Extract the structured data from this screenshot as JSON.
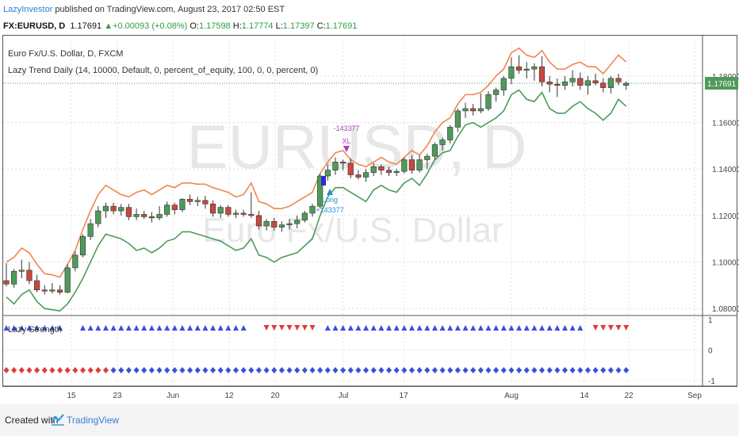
{
  "header": {
    "author": "LazyInvestor",
    "published": " published on TradingView.com, August 23, 2017 02:50 EST"
  },
  "symbol_bar": {
    "symbol": "FX:EURUSD, D",
    "last": "1.17691",
    "change": "+0.00093 (+0.08%)",
    "open_label": "O:",
    "open": "1.17598",
    "high_label": "H:",
    "high": "1.17774",
    "low_label": "L:",
    "low": "1.17397",
    "close_label": "C:",
    "close": "1.17691"
  },
  "legend": {
    "series": "Euro Fx/U.S. Dollar, D, FXCM",
    "strategy": "Lazy Trend Daily (14, 10000, Default, 0, percent_of_equity, 100, 0, 0, percent, 0)",
    "subpane": "Lazy Strength"
  },
  "watermark": {
    "line1": "EURUSD, D",
    "line2": "Euro Fx/U.S. Dollar"
  },
  "footer": {
    "created": "Created with",
    "brand": "TradingView"
  },
  "colors": {
    "up": "#4e9a5a",
    "down": "#c9473c",
    "upper_band": "#f0854d",
    "lower_band": "#4e9a5a",
    "tri_up": "#3b4fd8",
    "tri_down": "#e23a3a",
    "dia_red": "#e23a3a",
    "dia_blue": "#3b4fd8",
    "price_tag": "#4e9a5a",
    "trade_short": "#b040c0",
    "trade_long": "#1e8fd8"
  },
  "chart_data": {
    "type": "candlestick",
    "y_axis_ticks": [
      "1.18000",
      "1.16000",
      "1.14000",
      "1.12000",
      "1.10000",
      "1.08000"
    ],
    "last_price": "1.17691",
    "x_axis_labels": [
      "15",
      "23",
      "Jun",
      "12",
      "20",
      "Jul",
      "17",
      "Aug",
      "14",
      "22",
      "Sep"
    ],
    "lower_axis_ticks": [
      "1",
      "0",
      "-1"
    ],
    "trades": [
      {
        "label1": "-143377",
        "label2": "XL"
      },
      {
        "label1": "Long",
        "label2": "+143377"
      }
    ],
    "candles": [
      {
        "o": 1.092,
        "h": 1.0995,
        "l": 1.0895,
        "c": 1.0905
      },
      {
        "o": 1.0905,
        "h": 1.097,
        "l": 1.089,
        "c": 1.096
      },
      {
        "o": 1.096,
        "h": 1.101,
        "l": 1.093,
        "c": 1.0965
      },
      {
        "o": 1.0965,
        "h": 1.1,
        "l": 1.0905,
        "c": 1.092
      },
      {
        "o": 1.092,
        "h": 1.0945,
        "l": 1.087,
        "c": 1.088
      },
      {
        "o": 1.088,
        "h": 1.09,
        "l": 1.086,
        "c": 1.0875
      },
      {
        "o": 1.0875,
        "h": 1.091,
        "l": 1.0865,
        "c": 1.088
      },
      {
        "o": 1.088,
        "h": 1.09,
        "l": 1.086,
        "c": 1.087
      },
      {
        "o": 1.087,
        "h": 1.099,
        "l": 1.0865,
        "c": 1.0975
      },
      {
        "o": 1.0975,
        "h": 1.1045,
        "l": 1.096,
        "c": 1.103
      },
      {
        "o": 1.103,
        "h": 1.112,
        "l": 1.102,
        "c": 1.111
      },
      {
        "o": 1.111,
        "h": 1.1185,
        "l": 1.1095,
        "c": 1.1165
      },
      {
        "o": 1.1165,
        "h": 1.124,
        "l": 1.115,
        "c": 1.122
      },
      {
        "o": 1.122,
        "h": 1.1255,
        "l": 1.119,
        "c": 1.124
      },
      {
        "o": 1.124,
        "h": 1.1255,
        "l": 1.1205,
        "c": 1.122
      },
      {
        "o": 1.122,
        "h": 1.125,
        "l": 1.12,
        "c": 1.1235
      },
      {
        "o": 1.1235,
        "h": 1.125,
        "l": 1.118,
        "c": 1.1195
      },
      {
        "o": 1.1195,
        "h": 1.123,
        "l": 1.118,
        "c": 1.1205
      },
      {
        "o": 1.1205,
        "h": 1.122,
        "l": 1.1185,
        "c": 1.1195
      },
      {
        "o": 1.1195,
        "h": 1.1215,
        "l": 1.117,
        "c": 1.119
      },
      {
        "o": 1.119,
        "h": 1.124,
        "l": 1.118,
        "c": 1.1205
      },
      {
        "o": 1.1205,
        "h": 1.126,
        "l": 1.1195,
        "c": 1.1245
      },
      {
        "o": 1.1245,
        "h": 1.1255,
        "l": 1.1205,
        "c": 1.1225
      },
      {
        "o": 1.1225,
        "h": 1.1275,
        "l": 1.1215,
        "c": 1.127
      },
      {
        "o": 1.127,
        "h": 1.129,
        "l": 1.1245,
        "c": 1.126
      },
      {
        "o": 1.126,
        "h": 1.128,
        "l": 1.124,
        "c": 1.1265
      },
      {
        "o": 1.1265,
        "h": 1.1285,
        "l": 1.123,
        "c": 1.125
      },
      {
        "o": 1.125,
        "h": 1.1265,
        "l": 1.1195,
        "c": 1.121
      },
      {
        "o": 1.121,
        "h": 1.1245,
        "l": 1.119,
        "c": 1.1235
      },
      {
        "o": 1.1235,
        "h": 1.1245,
        "l": 1.1195,
        "c": 1.1205
      },
      {
        "o": 1.1205,
        "h": 1.1225,
        "l": 1.119,
        "c": 1.121
      },
      {
        "o": 1.121,
        "h": 1.1225,
        "l": 1.1195,
        "c": 1.1205
      },
      {
        "o": 1.1205,
        "h": 1.13,
        "l": 1.119,
        "c": 1.12
      },
      {
        "o": 1.12,
        "h": 1.122,
        "l": 1.114,
        "c": 1.1155
      },
      {
        "o": 1.1155,
        "h": 1.1185,
        "l": 1.1135,
        "c": 1.1175
      },
      {
        "o": 1.1175,
        "h": 1.119,
        "l": 1.1135,
        "c": 1.115
      },
      {
        "o": 1.115,
        "h": 1.1175,
        "l": 1.113,
        "c": 1.116
      },
      {
        "o": 1.116,
        "h": 1.1185,
        "l": 1.114,
        "c": 1.1165
      },
      {
        "o": 1.1165,
        "h": 1.12,
        "l": 1.1145,
        "c": 1.118
      },
      {
        "o": 1.118,
        "h": 1.122,
        "l": 1.117,
        "c": 1.121
      },
      {
        "o": 1.121,
        "h": 1.125,
        "l": 1.1195,
        "c": 1.124
      },
      {
        "o": 1.124,
        "h": 1.138,
        "l": 1.123,
        "c": 1.137
      },
      {
        "o": 1.137,
        "h": 1.142,
        "l": 1.135,
        "c": 1.1395
      },
      {
        "o": 1.1395,
        "h": 1.145,
        "l": 1.1375,
        "c": 1.143
      },
      {
        "o": 1.143,
        "h": 1.144,
        "l": 1.1395,
        "c": 1.1425
      },
      {
        "o": 1.1425,
        "h": 1.1445,
        "l": 1.136,
        "c": 1.1375
      },
      {
        "o": 1.1375,
        "h": 1.1395,
        "l": 1.1355,
        "c": 1.1365
      },
      {
        "o": 1.1365,
        "h": 1.14,
        "l": 1.1345,
        "c": 1.1385
      },
      {
        "o": 1.1385,
        "h": 1.1425,
        "l": 1.137,
        "c": 1.141
      },
      {
        "o": 1.141,
        "h": 1.142,
        "l": 1.1375,
        "c": 1.1395
      },
      {
        "o": 1.1395,
        "h": 1.141,
        "l": 1.137,
        "c": 1.1385
      },
      {
        "o": 1.1385,
        "h": 1.14,
        "l": 1.137,
        "c": 1.139
      },
      {
        "o": 1.139,
        "h": 1.145,
        "l": 1.138,
        "c": 1.144
      },
      {
        "o": 1.144,
        "h": 1.146,
        "l": 1.138,
        "c": 1.1395
      },
      {
        "o": 1.1395,
        "h": 1.146,
        "l": 1.1385,
        "c": 1.144
      },
      {
        "o": 1.144,
        "h": 1.1465,
        "l": 1.14,
        "c": 1.1455
      },
      {
        "o": 1.1455,
        "h": 1.1515,
        "l": 1.144,
        "c": 1.1505
      },
      {
        "o": 1.1505,
        "h": 1.1535,
        "l": 1.148,
        "c": 1.1525
      },
      {
        "o": 1.1525,
        "h": 1.159,
        "l": 1.151,
        "c": 1.158
      },
      {
        "o": 1.158,
        "h": 1.166,
        "l": 1.156,
        "c": 1.165
      },
      {
        "o": 1.165,
        "h": 1.1685,
        "l": 1.162,
        "c": 1.166
      },
      {
        "o": 1.166,
        "h": 1.168,
        "l": 1.163,
        "c": 1.165
      },
      {
        "o": 1.165,
        "h": 1.1725,
        "l": 1.164,
        "c": 1.166
      },
      {
        "o": 1.166,
        "h": 1.1735,
        "l": 1.165,
        "c": 1.172
      },
      {
        "o": 1.172,
        "h": 1.175,
        "l": 1.169,
        "c": 1.174
      },
      {
        "o": 1.174,
        "h": 1.18,
        "l": 1.1715,
        "c": 1.179
      },
      {
        "o": 1.179,
        "h": 1.188,
        "l": 1.1765,
        "c": 1.184
      },
      {
        "o": 1.184,
        "h": 1.189,
        "l": 1.181,
        "c": 1.1825
      },
      {
        "o": 1.1825,
        "h": 1.186,
        "l": 1.179,
        "c": 1.183
      },
      {
        "o": 1.183,
        "h": 1.1855,
        "l": 1.178,
        "c": 1.184
      },
      {
        "o": 1.184,
        "h": 1.1885,
        "l": 1.1755,
        "c": 1.1775
      },
      {
        "o": 1.1775,
        "h": 1.18,
        "l": 1.173,
        "c": 1.1765
      },
      {
        "o": 1.1765,
        "h": 1.179,
        "l": 1.171,
        "c": 1.176
      },
      {
        "o": 1.176,
        "h": 1.18,
        "l": 1.174,
        "c": 1.1775
      },
      {
        "o": 1.1775,
        "h": 1.1825,
        "l": 1.1755,
        "c": 1.179
      },
      {
        "o": 1.179,
        "h": 1.1815,
        "l": 1.174,
        "c": 1.176
      },
      {
        "o": 1.176,
        "h": 1.18,
        "l": 1.172,
        "c": 1.178
      },
      {
        "o": 1.178,
        "h": 1.181,
        "l": 1.176,
        "c": 1.177
      },
      {
        "o": 1.177,
        "h": 1.179,
        "l": 1.173,
        "c": 1.175
      },
      {
        "o": 1.175,
        "h": 1.18,
        "l": 1.1725,
        "c": 1.179
      },
      {
        "o": 1.179,
        "h": 1.181,
        "l": 1.176,
        "c": 1.1775
      },
      {
        "o": 1.176,
        "h": 1.1777,
        "l": 1.174,
        "c": 1.1769
      }
    ],
    "upper_band": [
      1.1,
      1.102,
      1.106,
      1.104,
      1.099,
      1.095,
      1.0945,
      1.0935,
      1.099,
      1.105,
      1.114,
      1.122,
      1.129,
      1.133,
      1.131,
      1.129,
      1.128,
      1.13,
      1.131,
      1.129,
      1.131,
      1.133,
      1.132,
      1.134,
      1.134,
      1.1335,
      1.1335,
      1.132,
      1.131,
      1.13,
      1.128,
      1.129,
      1.134,
      1.126,
      1.125,
      1.123,
      1.123,
      1.124,
      1.126,
      1.128,
      1.13,
      1.138,
      1.143,
      1.147,
      1.148,
      1.144,
      1.142,
      1.141,
      1.143,
      1.145,
      1.143,
      1.142,
      1.145,
      1.148,
      1.146,
      1.15,
      1.156,
      1.16,
      1.162,
      1.168,
      1.172,
      1.172,
      1.173,
      1.176,
      1.18,
      1.183,
      1.19,
      1.192,
      1.189,
      1.188,
      1.191,
      1.186,
      1.183,
      1.183,
      1.185,
      1.186,
      1.184,
      1.184,
      1.181,
      1.185,
      1.189,
      1.186
    ],
    "lower_band": [
      1.085,
      1.082,
      1.086,
      1.088,
      1.083,
      1.08,
      1.0795,
      1.079,
      1.082,
      1.087,
      1.093,
      1.1,
      1.107,
      1.112,
      1.111,
      1.11,
      1.108,
      1.105,
      1.106,
      1.104,
      1.106,
      1.109,
      1.11,
      1.113,
      1.113,
      1.112,
      1.111,
      1.11,
      1.109,
      1.107,
      1.105,
      1.106,
      1.11,
      1.103,
      1.102,
      1.1,
      1.102,
      1.103,
      1.104,
      1.107,
      1.11,
      1.12,
      1.128,
      1.132,
      1.132,
      1.13,
      1.128,
      1.126,
      1.131,
      1.133,
      1.131,
      1.13,
      1.134,
      1.136,
      1.133,
      1.138,
      1.144,
      1.147,
      1.148,
      1.154,
      1.159,
      1.16,
      1.158,
      1.16,
      1.162,
      1.165,
      1.172,
      1.174,
      1.17,
      1.169,
      1.173,
      1.166,
      1.164,
      1.164,
      1.167,
      1.169,
      1.166,
      1.164,
      1.161,
      1.164,
      1.17,
      1.167
    ],
    "lazy_strength": {
      "triangles": [
        "",
        "",
        "",
        "",
        "",
        "",
        "",
        "",
        "",
        "",
        "",
        "",
        "",
        "",
        "",
        "",
        "",
        "",
        "",
        "",
        "",
        "",
        "",
        "",
        "",
        "",
        "",
        "",
        "",
        "",
        "",
        "",
        "",
        "",
        "",
        "",
        "",
        "",
        "",
        "",
        "",
        "",
        "",
        "",
        "",
        "",
        "",
        "",
        "",
        "",
        "",
        "",
        "",
        "",
        "",
        "",
        "",
        "",
        "",
        "",
        "",
        "",
        "",
        "",
        "",
        "",
        "",
        "",
        "",
        "",
        "",
        "",
        "",
        "",
        "",
        "",
        "",
        ""
      ],
      "diamonds": []
    }
  }
}
